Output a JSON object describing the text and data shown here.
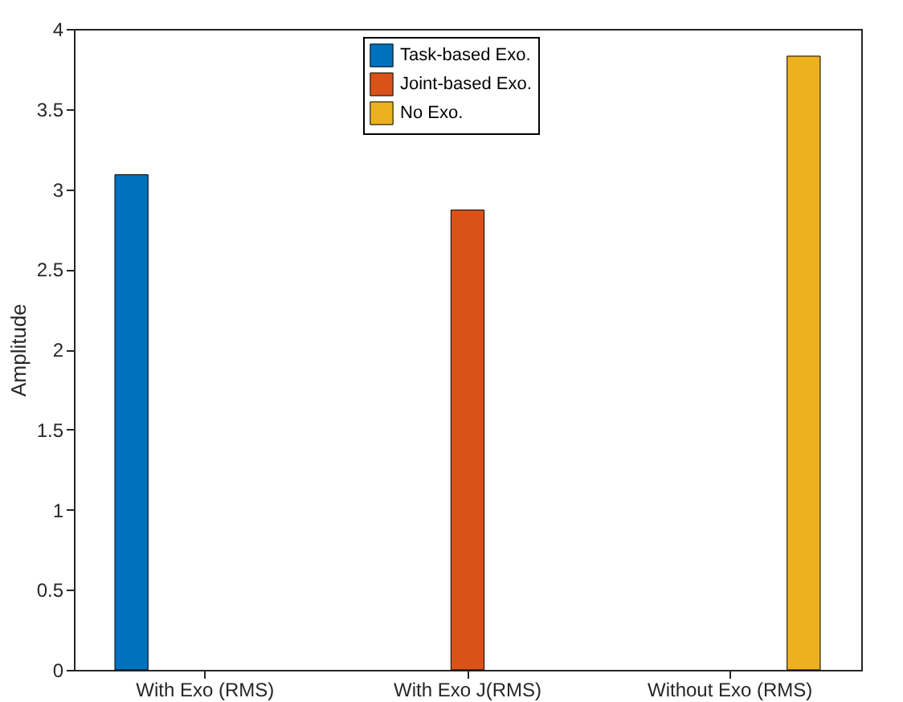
{
  "chart_data": {
    "type": "bar",
    "ylabel": "Amplitude",
    "categories": [
      "With Exo (RMS)",
      "With Exo J(RMS)",
      "Without Exo (RMS)"
    ],
    "series": [
      {
        "name": "Task-based Exo.",
        "color": "#0072bd",
        "values": [
          3.09,
          null,
          null
        ]
      },
      {
        "name": "Joint-based Exo.",
        "color": "#d95319",
        "values": [
          null,
          2.87,
          null
        ]
      },
      {
        "name": "No Exo.",
        "color": "#edb120",
        "values": [
          null,
          null,
          3.83
        ]
      }
    ],
    "ylim": [
      0,
      4
    ],
    "yticks": [
      0,
      0.5,
      1,
      1.5,
      2,
      2.5,
      3,
      3.5,
      4
    ],
    "grid": false,
    "legend": "top"
  }
}
